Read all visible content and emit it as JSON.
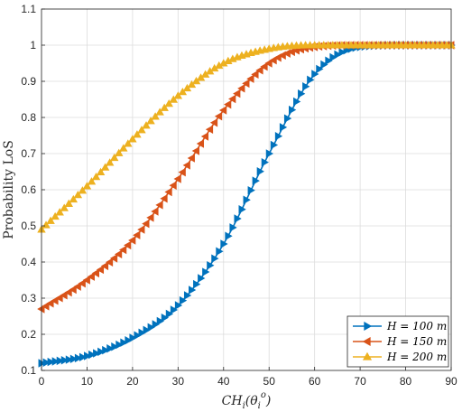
{
  "chart_data": {
    "type": "line",
    "xlabel": "CH_i(θ_i^o)",
    "ylabel": "Probability LoS",
    "xlim": [
      0,
      90
    ],
    "ylim": [
      0.1,
      1.1
    ],
    "xticks": [
      "0",
      "10",
      "20",
      "30",
      "40",
      "50",
      "60",
      "70",
      "80",
      "90"
    ],
    "yticks": [
      "0.1",
      "0.2",
      "0.3",
      "0.4",
      "0.5",
      "0.6",
      "0.7",
      "0.8",
      "0.9",
      "1",
      "1.1"
    ],
    "grid": true,
    "legend_position": "bottom-right",
    "x": [
      0,
      10,
      20,
      30,
      40,
      50,
      60,
      70,
      80,
      90
    ],
    "series": [
      {
        "name": "H = 100 m",
        "color": "#0072BD",
        "marker": "triangle-right",
        "values": [
          0.12,
          0.14,
          0.19,
          0.28,
          0.45,
          0.7,
          0.92,
          0.995,
          1.0,
          1.0
        ]
      },
      {
        "name": "H = 150 m",
        "color": "#D95319",
        "marker": "triangle-left",
        "values": [
          0.27,
          0.35,
          0.46,
          0.63,
          0.82,
          0.95,
          0.995,
          1.0,
          1.0,
          1.0
        ]
      },
      {
        "name": "H = 200 m",
        "color": "#EDB120",
        "marker": "triangle-up",
        "values": [
          0.49,
          0.61,
          0.74,
          0.86,
          0.95,
          0.99,
          1.0,
          1.0,
          1.0,
          1.0
        ]
      }
    ]
  }
}
